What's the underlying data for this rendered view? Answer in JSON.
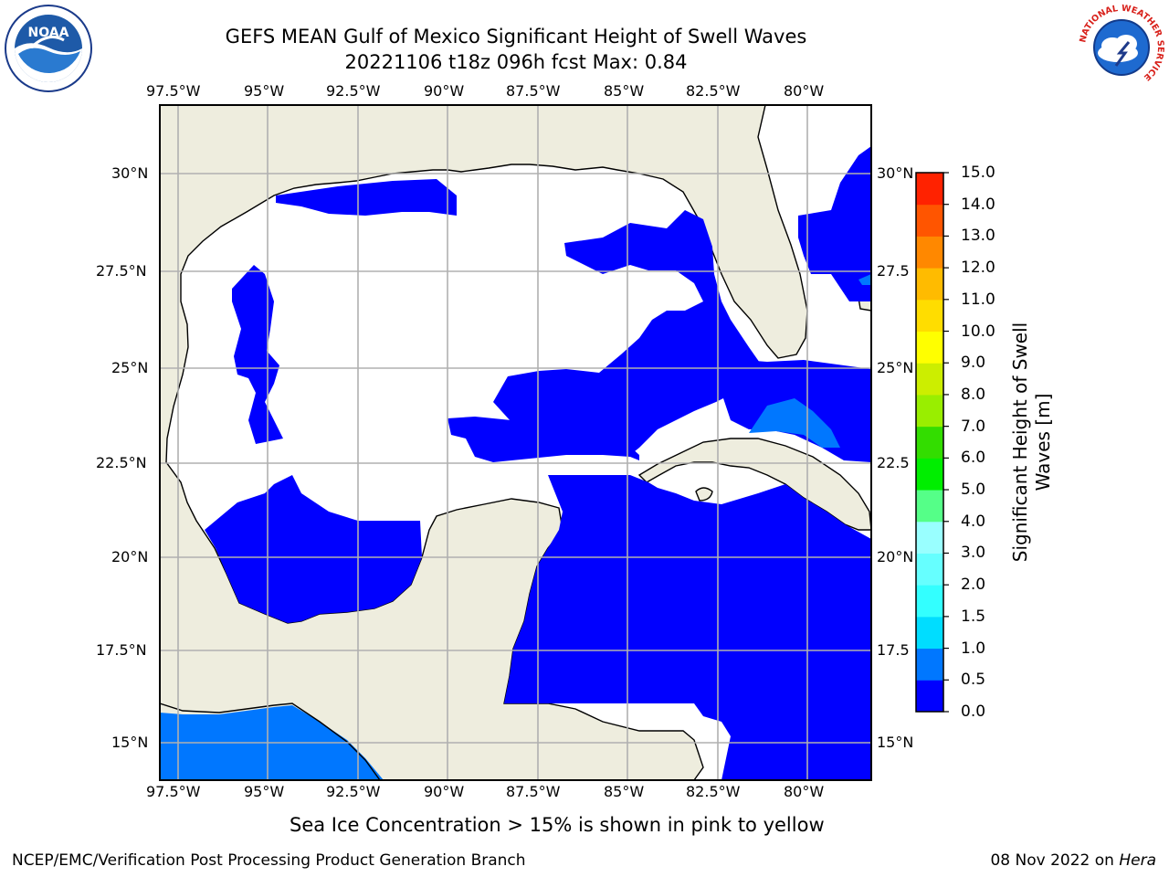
{
  "header": {
    "title_line1": "GEFS MEAN Gulf of Mexico Significant Height of Swell Waves",
    "title_line2": "20221106 t18z 096h fcst   Max: 0.84"
  },
  "logos": {
    "left": {
      "name": "noaa-logo",
      "text": "NOAA"
    },
    "right": {
      "name": "nws-logo",
      "text": "NATIONAL WEATHER SERVICE"
    }
  },
  "map": {
    "lon_ticks": [
      "97.5°W",
      "95°W",
      "92.5°W",
      "90°W",
      "87.5°W",
      "85°W",
      "82.5°W",
      "80°W"
    ],
    "lat_ticks_left": [
      "30°N",
      "27.5°N",
      "25°N",
      "22.5°N",
      "20°N",
      "17.5°N",
      "15°N"
    ],
    "lat_ticks_right": [
      "30°N",
      "27.5",
      "25°N",
      "22.5",
      "20°N",
      "17.5",
      "15°N"
    ],
    "lon_range": [
      -98,
      -78.2
    ],
    "lat_range": [
      14,
      31.7
    ],
    "land_color": "#eeedde",
    "grid_color": "#b0b0b0"
  },
  "colorbar": {
    "label": "Significant Height of Swell Waves [m]",
    "ticks": [
      "0.0",
      "0.5",
      "1.0",
      "1.5",
      "2.0",
      "3.0",
      "4.0",
      "5.0",
      "6.0",
      "7.0",
      "8.0",
      "9.0",
      "10.0",
      "11.0",
      "12.0",
      "13.0",
      "14.0",
      "15.0"
    ],
    "colors": [
      "#0000ff",
      "#0077ff",
      "#00ddff",
      "#33ffff",
      "#66ffff",
      "#99ffff",
      "#55ff88",
      "#00ee00",
      "#33dd00",
      "#99ee00",
      "#ccee00",
      "#ffff00",
      "#ffdd00",
      "#ffbb00",
      "#ff8800",
      "#ff5500",
      "#ff2200"
    ]
  },
  "note": "Sea Ice Concentration > 15% is shown in pink to yellow",
  "footer": {
    "left": "NCEP/EMC/Verification Post Processing Product Generation Branch",
    "right_date": "08 Nov 2022 on ",
    "right_host": "Hera"
  }
}
